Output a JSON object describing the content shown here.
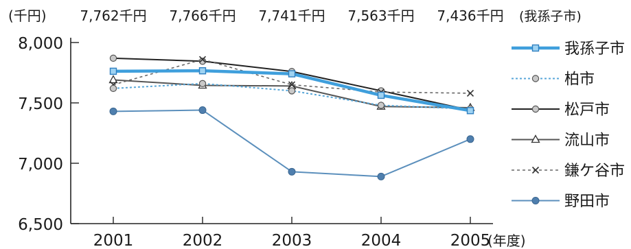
{
  "chart_data": {
    "type": "line",
    "y_unit_label": "(千円)",
    "x_unit_label": "(年度)",
    "highlight_note": "(我孫子市)",
    "top_value_labels": [
      "7,762千円",
      "7,766千円",
      "7,741千円",
      "7,563千円",
      "7,436千円"
    ],
    "categories": [
      "2001",
      "2002",
      "2003",
      "2004",
      "2005"
    ],
    "ylim": [
      6500,
      8000
    ],
    "yticks": [
      6500,
      7000,
      7500,
      8000
    ],
    "ytick_labels": [
      "6,500",
      "7,000",
      "7,500",
      "8,000"
    ],
    "series": [
      {
        "name": "我孫子市",
        "values": [
          7762,
          7766,
          7741,
          7563,
          7436
        ],
        "color": "#3f9fdc",
        "marker": "square",
        "style": "solid-thick"
      },
      {
        "name": "柏市",
        "values": [
          7620,
          7660,
          7600,
          7480,
          7450
        ],
        "color": "#58a6d8",
        "marker": "circle-gray",
        "style": "dotted-light"
      },
      {
        "name": "松戸市",
        "values": [
          7870,
          7845,
          7760,
          7600,
          7440
        ],
        "color": "#222222",
        "marker": "circle-gray",
        "style": "solid"
      },
      {
        "name": "流山市",
        "values": [
          7690,
          7645,
          7640,
          7470,
          7460
        ],
        "color": "#555555",
        "marker": "triangle",
        "style": "solid"
      },
      {
        "name": "鎌ケ谷市",
        "values": [
          7650,
          7860,
          7650,
          7590,
          7580
        ],
        "color": "#666666",
        "marker": "x",
        "style": "dashed"
      },
      {
        "name": "野田市",
        "values": [
          7430,
          7440,
          6930,
          6890,
          7200
        ],
        "color": "#5b8fbc",
        "marker": "circle-blue",
        "style": "solid"
      }
    ],
    "legend_position": "right",
    "grid": false
  }
}
